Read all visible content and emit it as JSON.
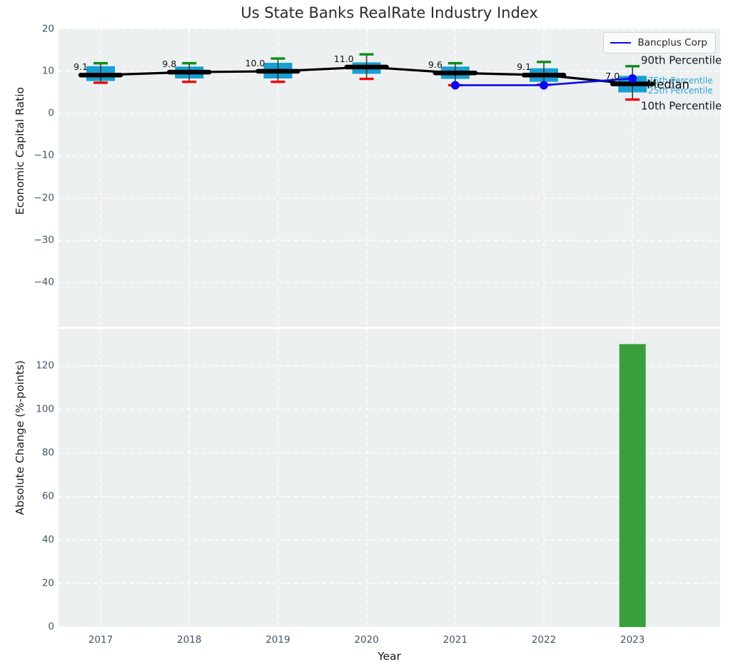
{
  "colors": {
    "axes_background": "#ecf0f1",
    "grid": "#ffffff",
    "box_fill": "#189fd2",
    "cap_90th_green": "#0e8c16",
    "cap_10th_red": "#ee0000",
    "median_black": "#000000",
    "company_blue": "#0a0af0",
    "bar_green": "#3a9e3d",
    "tick_label": "#44546a",
    "annotation_cyan": "#29a6d8"
  },
  "chart_data": [
    {
      "type": "boxplot+line",
      "title": "Us State Banks RealRate Industry Index",
      "xlabel": "Year",
      "ylabel": "Economic Capital Ratio",
      "x": [
        2017,
        2018,
        2019,
        2020,
        2021,
        2022,
        2023
      ],
      "yticks": [
        20,
        10,
        0,
        -10,
        -20,
        -30,
        -40
      ],
      "ylim": [
        -50.4,
        20.1
      ],
      "grid": true,
      "legend_position": "upper right",
      "legend_label": "Bancplus Corp",
      "series": [
        {
          "name": "90th Percentile",
          "values": [
            11.9,
            11.9,
            13.0,
            14.0,
            11.9,
            12.2,
            11.2
          ]
        },
        {
          "name": "75th Percentile",
          "values": [
            11.2,
            11.1,
            12.0,
            12.1,
            11.1,
            10.7,
            8.9
          ]
        },
        {
          "name": "Median",
          "values": [
            9.1,
            9.8,
            10.0,
            11.0,
            9.6,
            9.1,
            7.0
          ]
        },
        {
          "name": "25th Percentile",
          "values": [
            7.7,
            8.3,
            8.3,
            9.4,
            8.2,
            7.5,
            5.0
          ]
        },
        {
          "name": "10th Percentile",
          "values": [
            7.3,
            7.5,
            7.5,
            8.2,
            6.7,
            6.8,
            3.3
          ]
        },
        {
          "name": "Bancplus Corp",
          "values": [
            null,
            null,
            null,
            null,
            6.7,
            6.7,
            8.3
          ]
        }
      ],
      "median_labels": [
        "9.1",
        "9.8",
        "10.0",
        "11.0",
        "9.6",
        "9.1",
        "7.0"
      ],
      "annotations": [
        "90th Percentile",
        "75th Percentile",
        "Median",
        "25th Percentile",
        "10th Percentile"
      ]
    },
    {
      "type": "bar",
      "ylabel": "Absolute Change (%-points)",
      "xlabel": "Year",
      "categories": [
        2017,
        2018,
        2019,
        2020,
        2021,
        2022,
        2023
      ],
      "values": [
        null,
        null,
        null,
        null,
        null,
        null,
        130
      ],
      "yticks": [
        0,
        20,
        40,
        60,
        80,
        100,
        120
      ],
      "ylim": [
        0,
        137
      ],
      "grid": true
    }
  ]
}
